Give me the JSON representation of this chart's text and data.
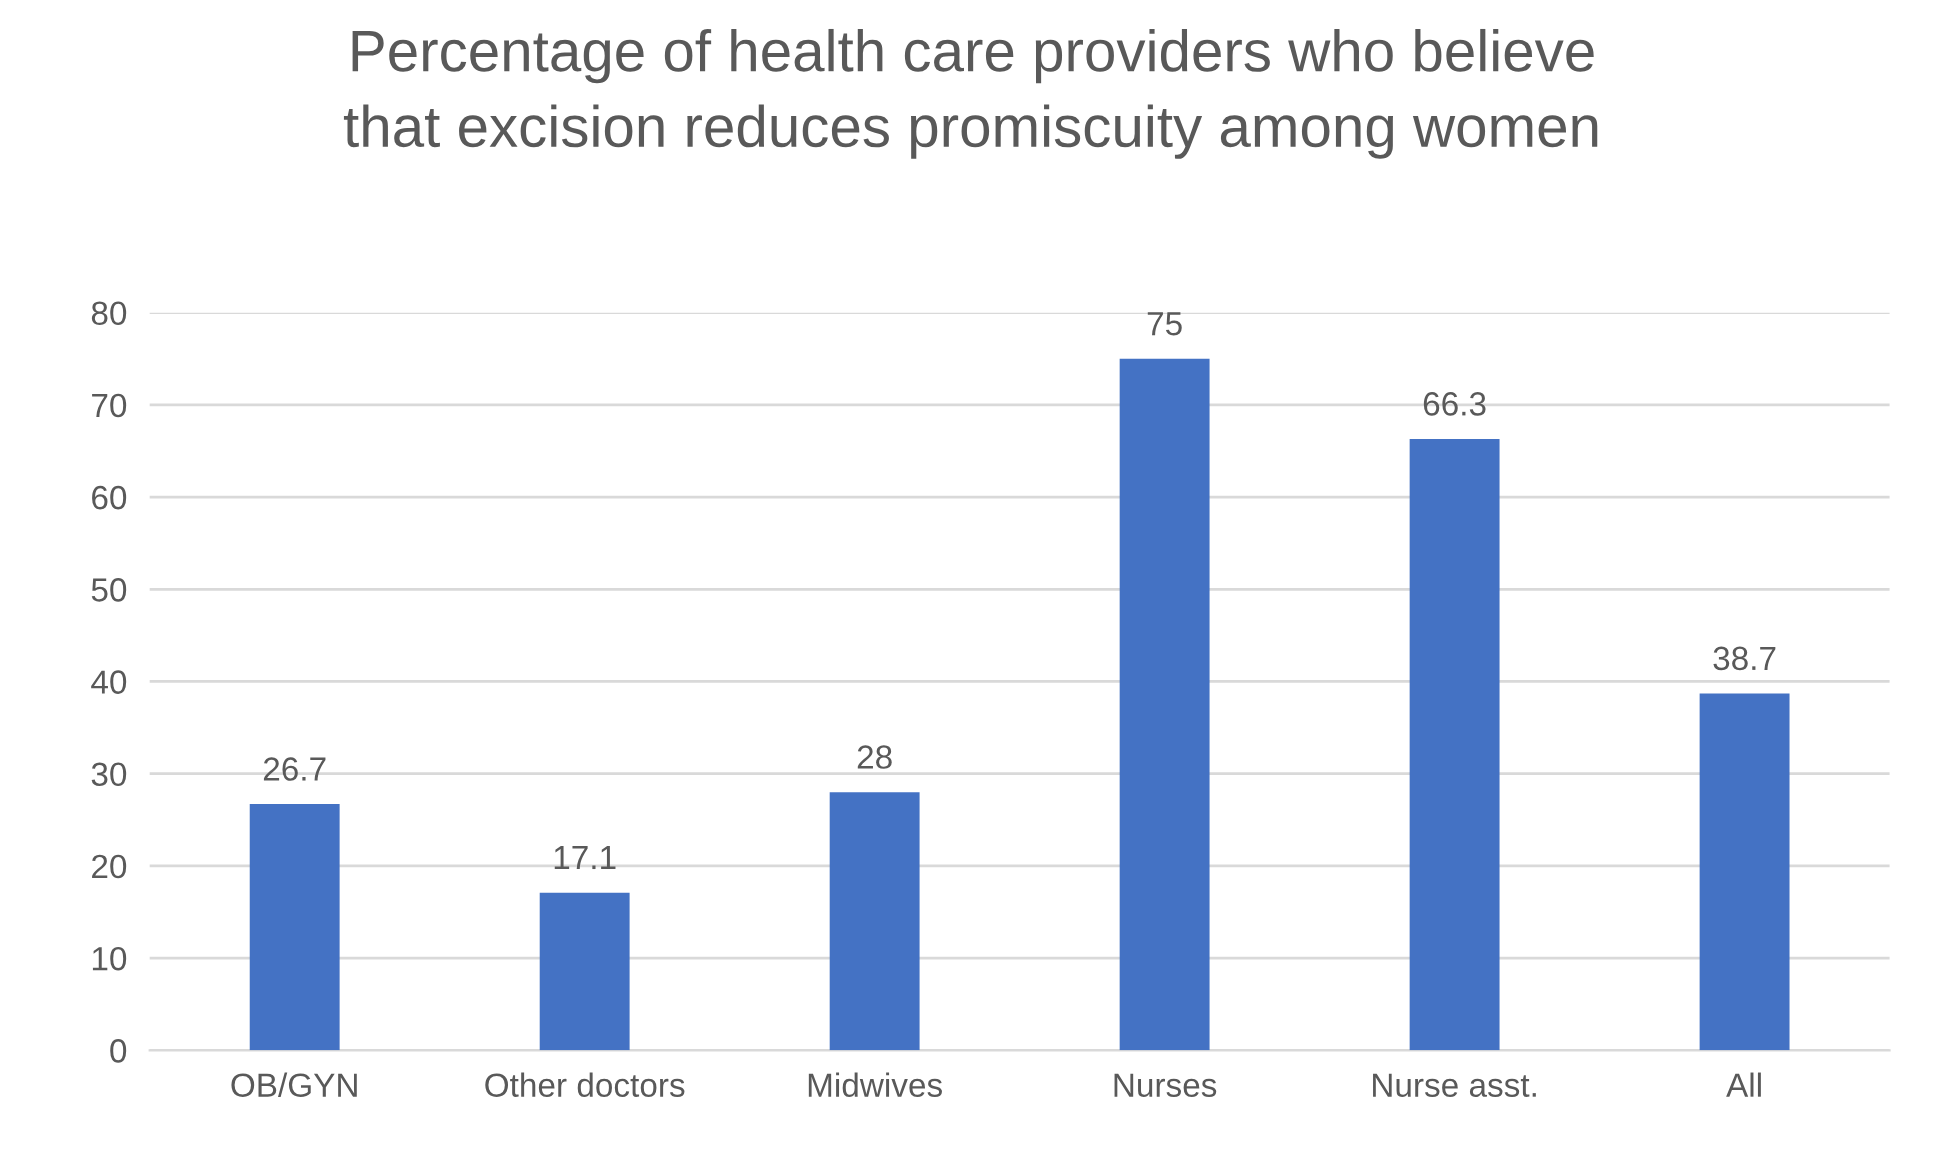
{
  "chart_data": {
    "type": "bar",
    "title": "Percentage of health care providers who believe\nthat excision reduces promiscuity among women",
    "categories": [
      "OB/GYN",
      "Other doctors",
      "Midwives",
      "Nurses",
      "Nurse asst.",
      "All"
    ],
    "values": [
      26.7,
      17.1,
      28,
      75,
      66.3,
      38.7
    ],
    "color": "#4472c4",
    "ylim": [
      0,
      80
    ],
    "yticks": [
      0,
      10,
      20,
      30,
      40,
      50,
      60,
      70,
      80
    ],
    "grid": "y",
    "data_labels": true,
    "legend": false
  }
}
